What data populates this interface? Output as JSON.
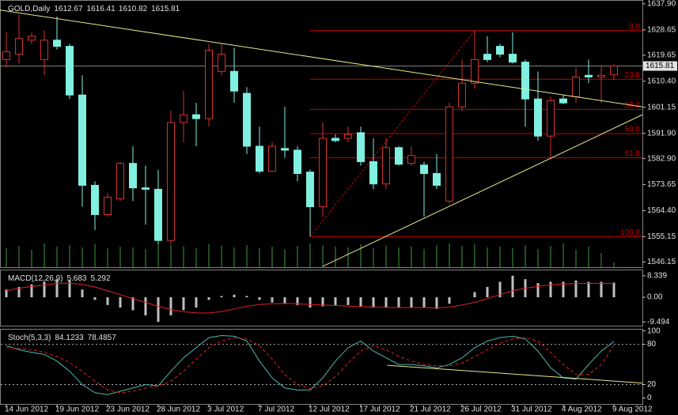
{
  "chart_data": [
    {
      "type": "candlestick",
      "title": "GOLD,Daily",
      "categories": [
        "14 Jun 2012",
        null,
        null,
        null,
        "19 Jun 2012",
        null,
        null,
        null,
        "23 Jun 2012",
        null,
        null,
        null,
        "28 Jun 2012",
        null,
        null,
        null,
        "3 Jul 2012",
        null,
        null,
        null,
        "7 Jul 2012",
        null,
        null,
        null,
        "12 Jul 2012",
        null,
        null,
        null,
        "17 Jul 2012",
        null,
        null,
        null,
        "21 Jul 2012",
        null,
        null,
        null,
        "26 Jul 2012",
        null,
        null,
        null,
        "31 Jul 2012",
        null,
        null,
        null,
        "4 Aug 2012",
        null,
        null,
        null,
        "9 Aug 2012"
      ],
      "open": [
        1618.1,
        1620.0,
        1625.0,
        1618.1,
        1625.0,
        1622.8,
        1605.5,
        1573.4,
        1563.0,
        1568.6,
        1581.2,
        1572.5,
        1572.0,
        1553.8,
        1595.7,
        1598.5,
        1597.1,
        1613.9,
        1613.9,
        1606.1,
        1587.3,
        1578.4,
        1586.5,
        1585.9,
        1578.1,
        1565.8,
        1590.1,
        1590.1,
        1592.1,
        1581.8,
        1573.9,
        1586.8,
        1581.2,
        1580.6,
        1577.6,
        1567.8,
        1601.3,
        1609.7,
        1620.0,
        1622.8,
        1620.0,
        1617.2,
        1604.1,
        1590.9,
        1604.1,
        1604.9,
        1612.5,
        1611.9,
        1612.67
      ],
      "high": [
        1627.8,
        1634.0,
        1627.8,
        1628.4,
        1633.4,
        1623.7,
        1612.5,
        1574.8,
        1570.6,
        1581.8,
        1587.3,
        1580.4,
        1579.0,
        1599.9,
        1606.9,
        1602.7,
        1623.7,
        1623.7,
        1622.3,
        1608.3,
        1594.3,
        1588.7,
        1601.3,
        1587.3,
        1579.0,
        1595.7,
        1591.5,
        1594.3,
        1594.3,
        1590.1,
        1590.1,
        1587.3,
        1587.3,
        1581.8,
        1584.5,
        1602.7,
        1618.1,
        1628.4,
        1626.4,
        1623.7,
        1627.8,
        1618.1,
        1613.9,
        1604.9,
        1605.5,
        1615.3,
        1618.1,
        1616.1,
        1616.41
      ],
      "low": [
        1615.3,
        1616.7,
        1623.7,
        1612.5,
        1621.7,
        1604.1,
        1565.8,
        1557.5,
        1562.2,
        1567.8,
        1567.8,
        1559.4,
        1552.4,
        1552.4,
        1588.7,
        1587.3,
        1594.3,
        1612.5,
        1602.7,
        1584.5,
        1577.6,
        1578.1,
        1583.1,
        1574.8,
        1555.2,
        1562.2,
        1588.7,
        1588.7,
        1580.4,
        1572.0,
        1572.0,
        1580.4,
        1580.4,
        1562.2,
        1572.0,
        1566.9,
        1599.9,
        1607.7,
        1617.2,
        1618.9,
        1616.7,
        1594.3,
        1589.3,
        1583.1,
        1602.2,
        1602.7,
        1609.7,
        1602.7,
        1610.82
      ],
      "close": [
        1620.9,
        1625.6,
        1626.4,
        1625.0,
        1622.8,
        1605.5,
        1573.4,
        1563.0,
        1569.2,
        1581.2,
        1572.5,
        1572.0,
        1553.8,
        1595.7,
        1598.5,
        1597.1,
        1621.4,
        1620.0,
        1606.9,
        1587.3,
        1578.4,
        1587.3,
        1585.9,
        1577.6,
        1565.8,
        1590.1,
        1589.3,
        1591.5,
        1581.8,
        1573.9,
        1586.8,
        1580.9,
        1584.0,
        1577.6,
        1573.4,
        1601.3,
        1609.7,
        1618.1,
        1618.1,
        1620.0,
        1617.2,
        1604.1,
        1590.9,
        1603.5,
        1602.7,
        1611.9,
        1611.9,
        1612.5,
        1615.81
      ],
      "volume": [
        24,
        27,
        22,
        30,
        26,
        28,
        25,
        29,
        24,
        26,
        25,
        23,
        30,
        28,
        26,
        24,
        29,
        27,
        25,
        28,
        24,
        26,
        23,
        27,
        30,
        28,
        26,
        25,
        29,
        24,
        27,
        25,
        26,
        23,
        28,
        30,
        27,
        29,
        25,
        26,
        24,
        28,
        23,
        27,
        30,
        22,
        26,
        18,
        6
      ],
      "bull_color": "#d23232",
      "bear_color": "#80f0e0",
      "volume_color": "#3c9b3c",
      "ylim": [
        1544.3,
        1639.0
      ],
      "yticks": [
        {
          "value": 1637.9,
          "label": "1637.90"
        },
        1628.65,
        1619.65,
        {
          "value": 1610.4,
          "label": "1610.40"
        },
        1601.15,
        {
          "value": 1591.9,
          "label": "1591.90"
        },
        {
          "value": 1582.9,
          "label": "1582.90"
        },
        1573.65,
        {
          "value": 1564.4,
          "label": "1564.40"
        },
        1555.15,
        1546.15
      ],
      "current_price": 1615.81,
      "current_price_color": "#808080",
      "fibo": {
        "from": {
          "bar": 24,
          "price": 1555.2
        },
        "to": {
          "bar": 37,
          "price": 1628.4
        },
        "color": "#c80000",
        "levels": [
          {
            "label": "0.0",
            "price": 1628.4
          },
          {
            "label": "23.6",
            "price": 1611.1
          },
          {
            "label": "38.2",
            "price": 1600.4
          },
          {
            "label": "50.0",
            "price": 1591.8
          },
          {
            "label": "61.8",
            "price": 1583.2
          },
          {
            "label": "100.0",
            "price": 1555.2
          }
        ]
      },
      "trendlines": [
        {
          "x": [
            -0.5,
            50.25
          ],
          "y": [
            1635.7,
            1601.3
          ],
          "color": "#e6e68c"
        },
        {
          "x": [
            25,
            50.25
          ],
          "y": [
            1544.6,
            1598.5
          ],
          "color": "#e6e68c"
        }
      ]
    },
    {
      "type": "macd",
      "title": "MACD(12,26,9)",
      "histogram": [
        3,
        4,
        5,
        6,
        7,
        6.5,
        3,
        -1,
        -3,
        -4,
        -5,
        -7,
        -9.494,
        -7,
        -5,
        -4,
        -1,
        0.5,
        1,
        0.5,
        -1,
        -2,
        -2.5,
        -3,
        -4,
        -3.5,
        -3,
        -3,
        -3.5,
        -4,
        -4,
        -4,
        -4,
        -4,
        -4.5,
        -2.5,
        0,
        2,
        4,
        6,
        8.339,
        7,
        5.5,
        6,
        6,
        6.5,
        6,
        6,
        5.683
      ],
      "signal": [
        2.5,
        3.5,
        4.2,
        4.8,
        5.3,
        5.5,
        5,
        4,
        2.5,
        1,
        -0.5,
        -2,
        -3.5,
        -4.8,
        -5.6,
        -6,
        -6.1,
        -5.5,
        -4.5,
        -3.5,
        -2.8,
        -2.5,
        -2.4,
        -2.5,
        -2.8,
        -3,
        -3.2,
        -3.4,
        -3.6,
        -3.8,
        -3.9,
        -4,
        -4,
        -4,
        -4.1,
        -3.8,
        -3,
        -2,
        -0.5,
        1,
        2.5,
        3.5,
        4.2,
        4.8,
        5.1,
        5.3,
        5.4,
        5.4,
        5.292
      ],
      "histogram_color": "#c0c0c0",
      "signal_color": "#e02020",
      "ylim": [
        -10.98,
        10.42
      ],
      "yticks": [
        8.339,
        {
          "value": 0,
          "label": "0.00"
        },
        -9.494
      ]
    },
    {
      "type": "stochastic",
      "title": "Stoch(5,3,3)",
      "main": [
        78,
        72,
        68,
        65,
        55,
        40,
        20,
        8,
        5,
        10,
        15,
        20,
        18,
        40,
        60,
        75,
        90,
        93,
        92,
        85,
        55,
        30,
        15,
        12,
        12,
        30,
        55,
        75,
        85,
        70,
        60,
        50,
        50,
        48,
        45,
        50,
        60,
        75,
        85,
        90,
        92,
        88,
        70,
        45,
        30,
        28,
        50,
        70,
        84.1233
      ],
      "signal": [
        75,
        74,
        72,
        68,
        62,
        53,
        40,
        25,
        12,
        8,
        10,
        15,
        18,
        25,
        40,
        58,
        75,
        85,
        90,
        88,
        78,
        58,
        35,
        20,
        14,
        18,
        32,
        52,
        70,
        78,
        72,
        62,
        55,
        50,
        48,
        48,
        52,
        62,
        72,
        82,
        88,
        90,
        85,
        68,
        50,
        35,
        35,
        50,
        78.4857
      ],
      "main_color": "#4fb8b0",
      "signal_color": "#e02020",
      "ylim": [
        -8.8,
        101.9
      ],
      "yticks": [
        100,
        80,
        20,
        0
      ],
      "levels": [
        80,
        20
      ],
      "trendlines": [
        {
          "x": [
            30.1,
            50.25
          ],
          "y": [
            48.8,
            22.3
          ],
          "color": "#e6e68c"
        }
      ]
    }
  ]
}
